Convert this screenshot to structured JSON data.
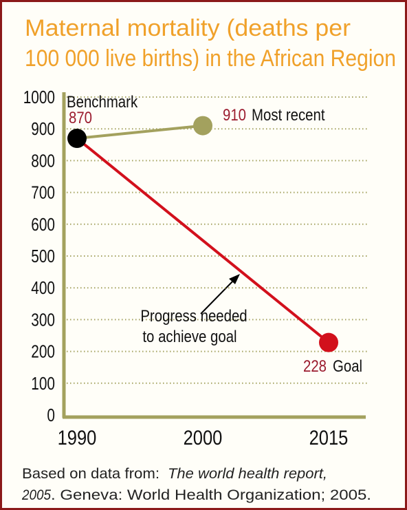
{
  "chart_data": {
    "type": "line",
    "title": [
      "Maternal mortality (deaths per",
      "100 000 live births) in the African Region"
    ],
    "categories": [
      "1990",
      "2000",
      "2015"
    ],
    "series": [
      {
        "color": "#a3a15e",
        "values": [
          870,
          910,
          null
        ],
        "span_gaps": false
      },
      {
        "color": "#d2101c",
        "values": [
          870,
          null,
          228
        ],
        "span_gaps": true
      }
    ],
    "benchmark_color": "#000000",
    "label_color": "#9b1b2e",
    "axis_color": "#a3a15e",
    "ylim": [
      0,
      1000
    ],
    "yticks": [
      0,
      100,
      200,
      300,
      400,
      500,
      600,
      700,
      800,
      900,
      1000
    ],
    "grid": true,
    "annotations": {
      "benchmark": "Benchmark",
      "most_recent": "Most recent",
      "goal": "Goal",
      "progress": [
        "Progress needed",
        "to achieve goal"
      ]
    },
    "source": {
      "lead": "Based on data from:",
      "work_1": "The world health report,",
      "work_2": "2005",
      "rest": ". Geneva: World Health Organization; 2005."
    }
  }
}
